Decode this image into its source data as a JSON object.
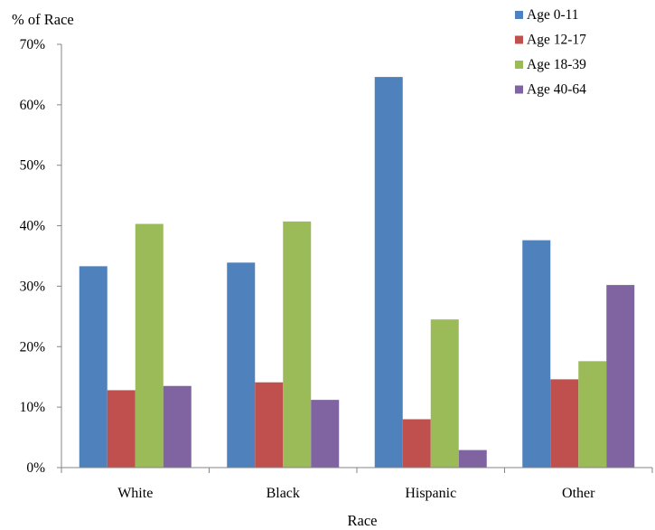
{
  "chart_data": {
    "type": "bar",
    "title": "",
    "ylabel": "% of Race",
    "xlabel": "Race",
    "categories": [
      "White",
      "Black",
      "Hispanic",
      "Other"
    ],
    "series": [
      {
        "name": "Age 0-11",
        "color": "#4F81BD",
        "values": [
          33.3,
          33.9,
          64.6,
          37.6
        ]
      },
      {
        "name": "Age 12-17",
        "color": "#C0504D",
        "values": [
          12.8,
          14.1,
          8.0,
          14.6
        ]
      },
      {
        "name": "Age 18-39",
        "color": "#9BBB59",
        "values": [
          40.3,
          40.7,
          24.5,
          17.6
        ]
      },
      {
        "name": "Age 40-64",
        "color": "#8064A2",
        "values": [
          13.5,
          11.2,
          2.9,
          30.2
        ]
      }
    ],
    "ylim": [
      0,
      70
    ],
    "yticks": [
      0,
      10,
      20,
      30,
      40,
      50,
      60,
      70
    ],
    "ytick_labels": [
      "0%",
      "10%",
      "20%",
      "30%",
      "40%",
      "50%",
      "60%",
      "70%"
    ],
    "grid": false,
    "legend_position": "top-right"
  }
}
